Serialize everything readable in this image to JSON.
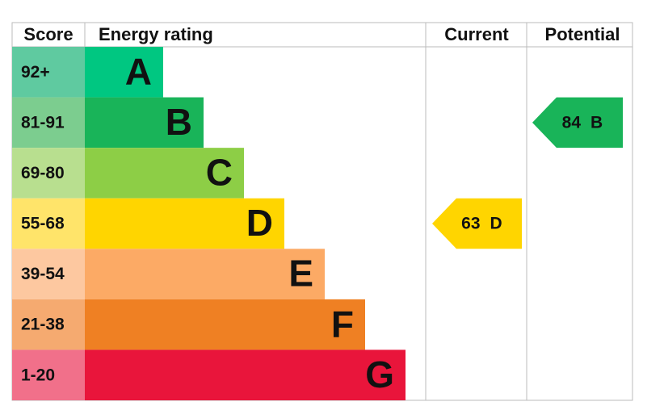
{
  "header": {
    "score": "Score",
    "rating": "Energy rating",
    "current": "Current",
    "potential": "Potential"
  },
  "bands": [
    {
      "score": "92+",
      "letter": "A",
      "color": "#00c781",
      "score_color": "#5fcaa0"
    },
    {
      "score": "81-91",
      "letter": "B",
      "color": "#19b459",
      "score_color": "#7ccd8f"
    },
    {
      "score": "69-80",
      "letter": "C",
      "color": "#8dce46",
      "score_color": "#b8df8f"
    },
    {
      "score": "55-68",
      "letter": "D",
      "color": "#ffd500",
      "score_color": "#ffe46a"
    },
    {
      "score": "39-54",
      "letter": "E",
      "color": "#fcaa65",
      "score_color": "#fdc8a0"
    },
    {
      "score": "21-38",
      "letter": "F",
      "color": "#ef8023",
      "score_color": "#f5aa70"
    },
    {
      "score": "1-20",
      "letter": "G",
      "color": "#e9153b",
      "score_color": "#f1708a"
    }
  ],
  "current": {
    "value": "63",
    "letter": "D"
  },
  "potential": {
    "value": "84",
    "letter": "B"
  }
}
